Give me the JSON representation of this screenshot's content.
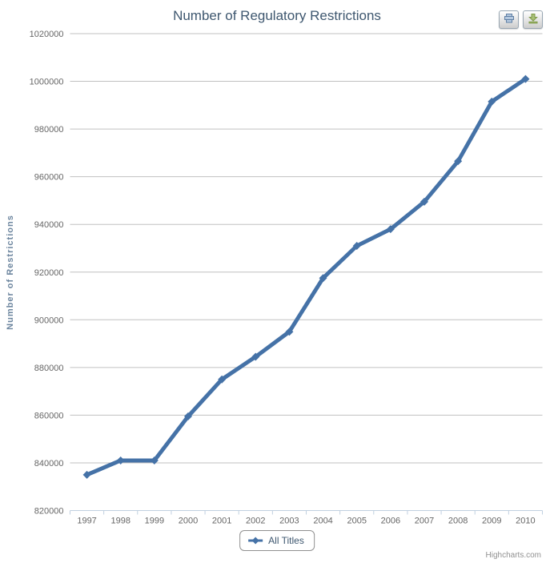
{
  "chart_data": {
    "type": "line",
    "title": "Number of Regulatory Restrictions",
    "xlabel": "",
    "ylabel": "Number of Restrictions",
    "categories": [
      "1997",
      "1998",
      "1999",
      "2000",
      "2001",
      "2002",
      "2003",
      "2004",
      "2005",
      "2006",
      "2007",
      "2008",
      "2009",
      "2010"
    ],
    "series": [
      {
        "name": "All Titles",
        "color": "#4572A7",
        "marker": "diamond",
        "values": [
          835000,
          841000,
          841000,
          859500,
          875000,
          884500,
          895000,
          917500,
          931000,
          938000,
          949500,
          966500,
          991500,
          1001000
        ]
      }
    ],
    "ylim": [
      820000,
      1020000
    ],
    "ytick_step": 20000,
    "grid": true,
    "legend_position": "bottom-center"
  },
  "toolbar": {
    "buttons": [
      {
        "icon": "print-icon"
      },
      {
        "icon": "download-icon"
      }
    ]
  },
  "credits": {
    "label": "Highcharts.com"
  },
  "colors": {
    "accent": "#4572A7",
    "title_text": "#3E576F",
    "axis_label": "#666666",
    "y_axis_title": "#6D869F",
    "gridline": "#C0C0C0",
    "axis_line": "#C0D0E0",
    "legend_border": "#909090",
    "credits_text": "#909090",
    "print_icon_fill": "#B5C9DF",
    "download_icon_fill": "#A8BF77"
  }
}
